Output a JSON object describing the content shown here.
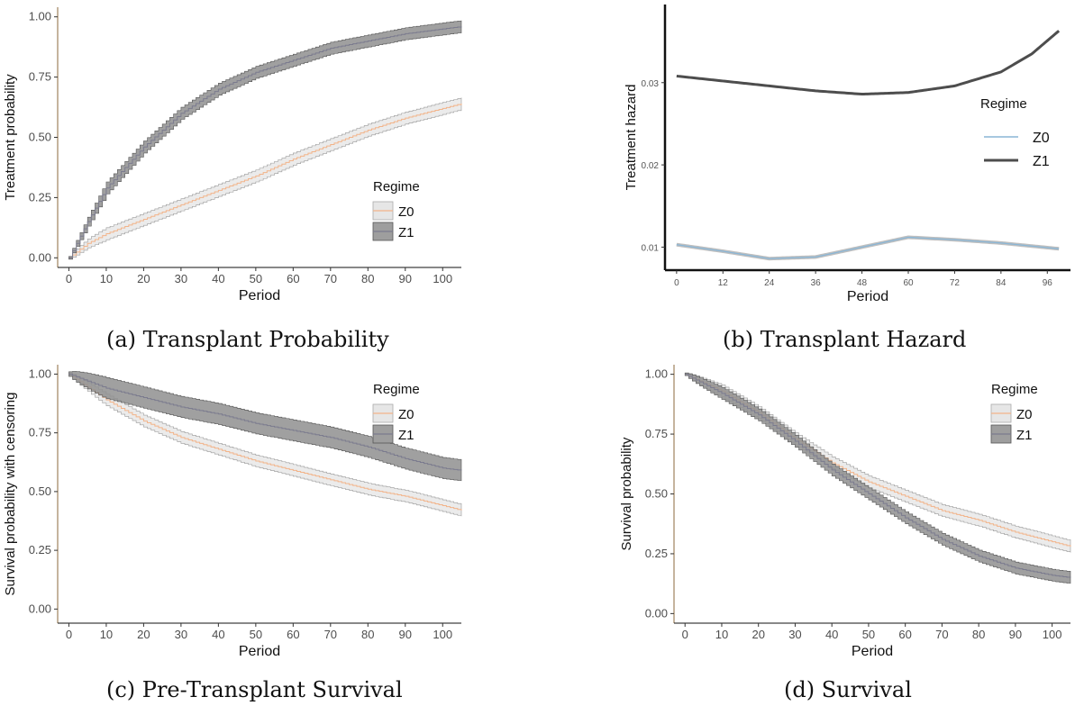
{
  "chart_data": [
    {
      "type": "line",
      "caption": "(a) Transplant Probability",
      "xlabel": "Period",
      "ylabel": "Treatment probability",
      "xlim": [
        -3,
        105
      ],
      "ylim": [
        -0.04,
        1.04
      ],
      "xticks": [
        0,
        10,
        20,
        30,
        40,
        50,
        60,
        70,
        80,
        90,
        100
      ],
      "yticks": [
        0.0,
        0.25,
        0.5,
        0.75,
        1.0
      ],
      "ytick_labels": [
        "0.00",
        "0.25",
        "0.50",
        "0.75",
        "1.00"
      ],
      "legend": {
        "title": "Regime",
        "position": "right",
        "entries": [
          "Z0",
          "Z1"
        ]
      },
      "step": true,
      "series": [
        {
          "name": "Z0",
          "band": 0.025,
          "points": [
            [
              0,
              0
            ],
            [
              5,
              0.06
            ],
            [
              10,
              0.1
            ],
            [
              20,
              0.16
            ],
            [
              30,
              0.22
            ],
            [
              40,
              0.28
            ],
            [
              50,
              0.34
            ],
            [
              60,
              0.41
            ],
            [
              70,
              0.47
            ],
            [
              80,
              0.53
            ],
            [
              90,
              0.58
            ],
            [
              100,
              0.62
            ],
            [
              105,
              0.64
            ]
          ]
        },
        {
          "name": "Z1",
          "band": 0.025,
          "points": [
            [
              0,
              0
            ],
            [
              5,
              0.15
            ],
            [
              10,
              0.29
            ],
            [
              20,
              0.46
            ],
            [
              30,
              0.6
            ],
            [
              40,
              0.7
            ],
            [
              50,
              0.77
            ],
            [
              60,
              0.82
            ],
            [
              70,
              0.87
            ],
            [
              80,
              0.9
            ],
            [
              90,
              0.93
            ],
            [
              100,
              0.95
            ],
            [
              105,
              0.96
            ]
          ]
        }
      ]
    },
    {
      "type": "line",
      "caption": "(b) Transplant Hazard",
      "xlabel": "Period",
      "ylabel": "Treatment hazard",
      "xlim": [
        -3,
        102
      ],
      "ylim": [
        0.0072,
        0.0395
      ],
      "xticks": [
        0,
        12,
        24,
        36,
        48,
        60,
        72,
        84,
        96
      ],
      "yticks": [
        0.01,
        0.02,
        0.03
      ],
      "ytick_labels": [
        "0.01",
        "0.02",
        "0.03"
      ],
      "legend": {
        "title": "Regime",
        "position": "right",
        "entries": [
          "Z0",
          "Z1"
        ]
      },
      "step": false,
      "series": [
        {
          "name": "Z0",
          "band": 0,
          "points": [
            [
              0,
              0.0103
            ],
            [
              12,
              0.0095
            ],
            [
              24,
              0.0086
            ],
            [
              36,
              0.0088
            ],
            [
              48,
              0.01
            ],
            [
              60,
              0.0112
            ],
            [
              72,
              0.0109
            ],
            [
              84,
              0.0105
            ],
            [
              99,
              0.0098
            ]
          ]
        },
        {
          "name": "Z1",
          "band": 0,
          "points": [
            [
              0,
              0.0308
            ],
            [
              12,
              0.0302
            ],
            [
              24,
              0.0296
            ],
            [
              36,
              0.029
            ],
            [
              48,
              0.0286
            ],
            [
              60,
              0.0288
            ],
            [
              72,
              0.0296
            ],
            [
              84,
              0.0313
            ],
            [
              92,
              0.0335
            ],
            [
              99,
              0.0363
            ]
          ]
        }
      ]
    },
    {
      "type": "line",
      "caption": "(c) Pre-Transplant Survival",
      "xlabel": "Period",
      "ylabel": "Survival probability with censoring",
      "xlim": [
        -3,
        105
      ],
      "ylim": [
        -0.06,
        1.04
      ],
      "xticks": [
        0,
        10,
        20,
        30,
        40,
        50,
        60,
        70,
        80,
        90,
        100
      ],
      "yticks": [
        0.0,
        0.25,
        0.5,
        0.75,
        1.0
      ],
      "ytick_labels": [
        "0.00",
        "0.25",
        "0.50",
        "0.75",
        "1.00"
      ],
      "legend": {
        "title": "Regime",
        "position": "right",
        "entries": [
          "Z0",
          "Z1"
        ]
      },
      "step": true,
      "series": [
        {
          "name": "Z0",
          "band": 0.025,
          "points": [
            [
              0,
              1
            ],
            [
              10,
              0.89
            ],
            [
              20,
              0.8
            ],
            [
              30,
              0.73
            ],
            [
              40,
              0.68
            ],
            [
              50,
              0.63
            ],
            [
              60,
              0.59
            ],
            [
              70,
              0.55
            ],
            [
              80,
              0.51
            ],
            [
              90,
              0.48
            ],
            [
              100,
              0.44
            ],
            [
              105,
              0.42
            ]
          ]
        },
        {
          "name": "Z1",
          "band": 0.045,
          "points": [
            [
              0,
              1
            ],
            [
              10,
              0.94
            ],
            [
              20,
              0.9
            ],
            [
              30,
              0.86
            ],
            [
              40,
              0.83
            ],
            [
              50,
              0.79
            ],
            [
              60,
              0.76
            ],
            [
              70,
              0.73
            ],
            [
              80,
              0.69
            ],
            [
              90,
              0.64
            ],
            [
              100,
              0.6
            ],
            [
              105,
              0.59
            ]
          ]
        }
      ]
    },
    {
      "type": "line",
      "caption": "(d) Survival",
      "xlabel": "Period",
      "ylabel": "Survival probability",
      "xlim": [
        -3,
        105
      ],
      "ylim": [
        -0.04,
        1.04
      ],
      "xticks": [
        0,
        10,
        20,
        30,
        40,
        50,
        60,
        70,
        80,
        90,
        100
      ],
      "yticks": [
        0.0,
        0.25,
        0.5,
        0.75,
        1.0
      ],
      "ytick_labels": [
        "0.00",
        "0.25",
        "0.50",
        "0.75",
        "1.00"
      ],
      "legend": {
        "title": "Regime",
        "position": "top-right",
        "entries": [
          "Z0",
          "Z1"
        ]
      },
      "step": true,
      "series": [
        {
          "name": "Z0",
          "band": 0.025,
          "points": [
            [
              0,
              1
            ],
            [
              10,
              0.93
            ],
            [
              20,
              0.84
            ],
            [
              30,
              0.73
            ],
            [
              40,
              0.63
            ],
            [
              50,
              0.55
            ],
            [
              60,
              0.49
            ],
            [
              70,
              0.43
            ],
            [
              80,
              0.39
            ],
            [
              90,
              0.34
            ],
            [
              100,
              0.3
            ],
            [
              105,
              0.28
            ]
          ]
        },
        {
          "name": "Z1",
          "band": 0.025,
          "points": [
            [
              0,
              1
            ],
            [
              10,
              0.92
            ],
            [
              20,
              0.83
            ],
            [
              30,
              0.72
            ],
            [
              40,
              0.6
            ],
            [
              50,
              0.5
            ],
            [
              60,
              0.4
            ],
            [
              70,
              0.31
            ],
            [
              80,
              0.24
            ],
            [
              90,
              0.19
            ],
            [
              100,
              0.16
            ],
            [
              105,
              0.15
            ]
          ]
        }
      ]
    }
  ],
  "colors": {
    "z0_line": "#f2b48a",
    "z0_band": "#e4e4e4",
    "z1_line": "#7b7b8e",
    "z1_band": "#8f8f8f",
    "hazard_z0": "#8ab6d6",
    "hazard_z1": "#4d4d4d",
    "axis": "#222222"
  }
}
